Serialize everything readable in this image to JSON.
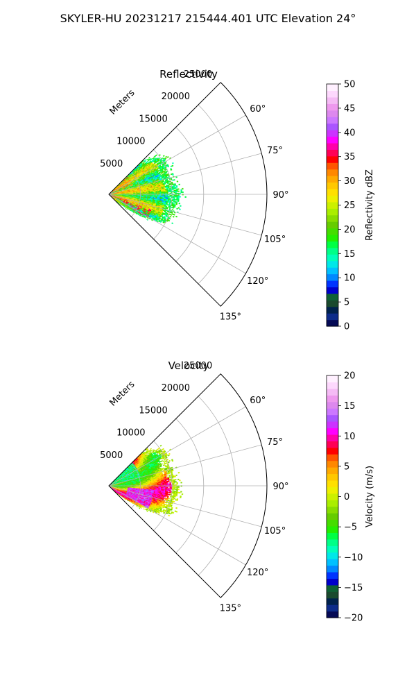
{
  "figure_title": "SKYLER-HU  20231217  215444.401 UTC Elevation 24°",
  "chart_data": [
    {
      "type": "heatmap",
      "title": "Reflectivity",
      "rlabel": "Meters",
      "r_ticks": [
        5000,
        10000,
        15000,
        20000,
        25000
      ],
      "r_max": 25000,
      "theta_ticks": [
        "60°",
        "75°",
        "90°",
        "105°",
        "120°",
        "135°"
      ],
      "theta_range_deg": [
        45,
        135
      ],
      "grid": true,
      "colorbar": {
        "label": "Reflectivity dBZ",
        "range": [
          0,
          50
        ],
        "ticks": [
          0,
          5,
          10,
          15,
          20,
          25,
          30,
          35,
          40,
          45,
          50
        ],
        "bands": 30,
        "palette": [
          "#050a55",
          "#0d2c8a",
          "#00224d",
          "#1a4a2e",
          "#0f6135",
          "#0000cc",
          "#0033ff",
          "#0088ff",
          "#00c0ff",
          "#00e8e8",
          "#00ffbb",
          "#00ff88",
          "#00ff44",
          "#22ee00",
          "#44dd00",
          "#66cc00",
          "#88dd00",
          "#aaee00",
          "#ccf000",
          "#eef000",
          "#ffe000",
          "#ffc800",
          "#ffaa00",
          "#ff8800",
          "#ff5500",
          "#ff0000",
          "#ff0055",
          "#ff00aa",
          "#ff00ff",
          "#cc33ff",
          "#aa55ff",
          "#cc77ff",
          "#dd88ee",
          "#ee99ee",
          "#f5bbf5",
          "#fdd8fd",
          "#fff0ff"
        ]
      },
      "echo_extent_m": [
        [
          45,
          7500
        ],
        [
          50,
          8800
        ],
        [
          55,
          10000
        ],
        [
          60,
          10500
        ],
        [
          65,
          10000
        ],
        [
          70,
          9800
        ],
        [
          75,
          10200
        ],
        [
          80,
          10200
        ],
        [
          85,
          10600
        ],
        [
          90,
          11000
        ],
        [
          95,
          11000
        ],
        [
          100,
          10600
        ],
        [
          105,
          10400
        ],
        [
          110,
          10500
        ],
        [
          115,
          10200
        ],
        [
          120,
          8200
        ],
        [
          125,
          5500
        ],
        [
          130,
          2500
        ],
        [
          135,
          1000
        ]
      ],
      "approx_value_range": [
        13,
        38
      ]
    },
    {
      "type": "heatmap",
      "title": "Velocity",
      "rlabel": "Meters",
      "r_ticks": [
        5000,
        10000,
        15000,
        20000,
        25000
      ],
      "r_max": 25000,
      "theta_ticks": [
        "60°",
        "75°",
        "90°",
        "105°",
        "120°",
        "135°"
      ],
      "theta_range_deg": [
        45,
        135
      ],
      "grid": true,
      "colorbar": {
        "label": "Velocity (m/s)",
        "range": [
          -20,
          20
        ],
        "ticks": [
          -20,
          -15,
          -10,
          -5,
          0,
          5,
          10,
          15,
          20
        ],
        "bands": 30,
        "palette": [
          "#050a55",
          "#0d2c8a",
          "#00224d",
          "#1a4a2e",
          "#0f6135",
          "#0000cc",
          "#0033ff",
          "#0088ff",
          "#00c0ff",
          "#00e8e8",
          "#00ffbb",
          "#00ff88",
          "#00ff44",
          "#22ee00",
          "#44dd00",
          "#66cc00",
          "#88dd00",
          "#aaee00",
          "#ccf000",
          "#eef000",
          "#ffe000",
          "#ffc800",
          "#ffaa00",
          "#ff8800",
          "#ff5500",
          "#ff0000",
          "#ff0055",
          "#ff00aa",
          "#ff00ff",
          "#cc33ff",
          "#aa55ff",
          "#cc77ff",
          "#dd88ee",
          "#ee99ee",
          "#f5bbf5",
          "#fdd8fd",
          "#fff0ff"
        ]
      },
      "echo_extent_m": [
        [
          45,
          7500
        ],
        [
          50,
          8800
        ],
        [
          55,
          10000
        ],
        [
          60,
          10500
        ],
        [
          65,
          10000
        ],
        [
          70,
          9800
        ],
        [
          75,
          10200
        ],
        [
          80,
          10200
        ],
        [
          85,
          10600
        ],
        [
          90,
          11000
        ],
        [
          95,
          11000
        ],
        [
          100,
          10600
        ],
        [
          105,
          10400
        ],
        [
          110,
          10500
        ],
        [
          115,
          10200
        ],
        [
          120,
          8200
        ],
        [
          125,
          5500
        ],
        [
          130,
          2500
        ],
        [
          135,
          1000
        ]
      ],
      "approx_value_range": [
        -12,
        15
      ]
    }
  ]
}
